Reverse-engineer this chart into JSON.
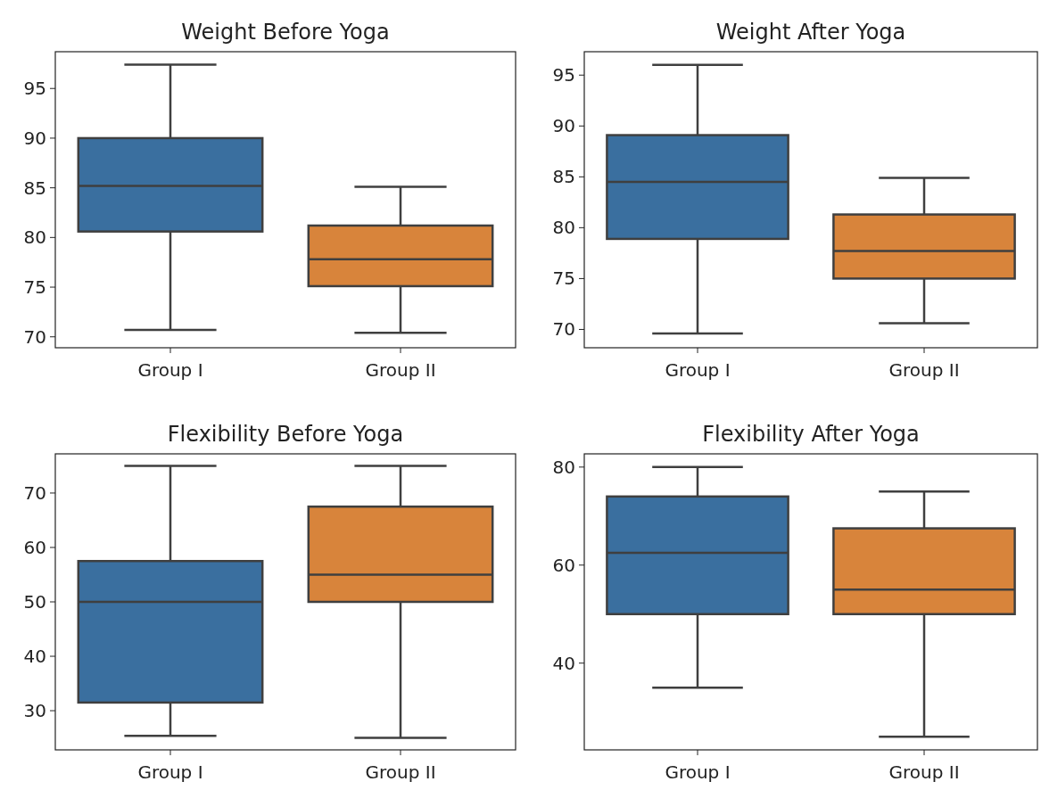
{
  "chart_data": [
    {
      "type": "box",
      "title": "Weight Before Yoga",
      "categories": [
        "Group I",
        "Group II"
      ],
      "colors": [
        "#3a6f9f",
        "#d8843b"
      ],
      "ylim": [
        68.9,
        98.7
      ],
      "yticks": [
        70,
        75,
        80,
        85,
        90,
        95
      ],
      "boxes": [
        {
          "low": 70.7,
          "q1": 80.6,
          "median": 85.2,
          "q3": 90,
          "high": 97.4
        },
        {
          "low": 70.4,
          "q1": 75.1,
          "median": 77.8,
          "q3": 81.2,
          "high": 85.1
        }
      ]
    },
    {
      "type": "box",
      "title": "Weight After Yoga",
      "categories": [
        "Group I",
        "Group II"
      ],
      "colors": [
        "#3a6f9f",
        "#d8843b"
      ],
      "ylim": [
        68.2,
        97.3
      ],
      "yticks": [
        70,
        75,
        80,
        85,
        90,
        95
      ],
      "boxes": [
        {
          "low": 69.6,
          "q1": 78.9,
          "median": 84.5,
          "q3": 89.1,
          "high": 96
        },
        {
          "low": 70.6,
          "q1": 75,
          "median": 77.7,
          "q3": 81.3,
          "high": 84.9
        }
      ]
    },
    {
      "type": "box",
      "title": "Flexibility Before Yoga",
      "categories": [
        "Group I",
        "Group II"
      ],
      "colors": [
        "#3a6f9f",
        "#d8843b"
      ],
      "ylim": [
        22.8,
        77.2
      ],
      "yticks": [
        30,
        40,
        50,
        60,
        70
      ],
      "boxes": [
        {
          "low": 25.4,
          "q1": 31.5,
          "median": 50,
          "q3": 57.5,
          "high": 75
        },
        {
          "low": 25,
          "q1": 50,
          "median": 55,
          "q3": 67.5,
          "high": 75
        }
      ]
    },
    {
      "type": "box",
      "title": "Flexibility After Yoga",
      "categories": [
        "Group I",
        "Group II"
      ],
      "colors": [
        "#3a6f9f",
        "#d8843b"
      ],
      "ylim": [
        22.3,
        82.7
      ],
      "yticks": [
        40,
        60,
        80
      ],
      "boxes": [
        {
          "low": 35,
          "q1": 50,
          "median": 62.5,
          "q3": 74,
          "high": 80
        },
        {
          "low": 25,
          "q1": 50,
          "median": 55,
          "q3": 67.5,
          "high": 75
        }
      ]
    }
  ]
}
